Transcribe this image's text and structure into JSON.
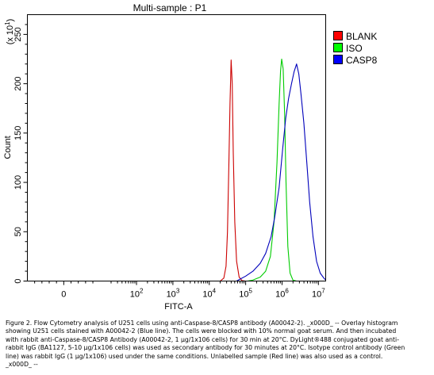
{
  "chart_data": {
    "type": "line",
    "title": "Multi-sample : P1",
    "xlabel": "FITC-A",
    "ylabel": "Count",
    "y_multiplier": "(x 10",
    "y_multiplier_exp": "1",
    "y_multiplier_close": ")",
    "x_scale": "log",
    "xlim": [
      -1,
      7.2
    ],
    "ylim": [
      0,
      27
    ],
    "x_ticks": [
      {
        "value": 0,
        "base": "0",
        "exp": ""
      },
      {
        "value": 2,
        "base": "10",
        "exp": "2"
      },
      {
        "value": 3,
        "base": "10",
        "exp": "3"
      },
      {
        "value": 4,
        "base": "10",
        "exp": "4"
      },
      {
        "value": 5,
        "base": "10",
        "exp": "5"
      },
      {
        "value": 6,
        "base": "10",
        "exp": "6"
      },
      {
        "value": 7,
        "base": "10",
        "exp": "7"
      }
    ],
    "y_ticks": [
      "0",
      "50",
      "100",
      "150",
      "200",
      "250"
    ],
    "y_tick_values": [
      0,
      5,
      10,
      15,
      20,
      25
    ],
    "legend_position": "top-right",
    "series": [
      {
        "name": "BLANK",
        "color": "#cc0000",
        "legend_fill": "#ff0000",
        "points": [
          [
            4.3,
            0
          ],
          [
            4.4,
            0.3
          ],
          [
            4.46,
            1.5
          ],
          [
            4.5,
            5
          ],
          [
            4.54,
            12
          ],
          [
            4.57,
            18
          ],
          [
            4.6,
            22.4
          ],
          [
            4.63,
            20
          ],
          [
            4.66,
            13
          ],
          [
            4.7,
            6
          ],
          [
            4.75,
            2
          ],
          [
            4.82,
            0.4
          ],
          [
            4.9,
            0.05
          ],
          [
            5.0,
            0
          ]
        ]
      },
      {
        "name": "ISO",
        "color": "#00cc00",
        "legend_fill": "#00ff00",
        "points": [
          [
            5.05,
            0
          ],
          [
            5.2,
            0.1
          ],
          [
            5.4,
            0.4
          ],
          [
            5.55,
            1.0
          ],
          [
            5.68,
            2.5
          ],
          [
            5.78,
            6
          ],
          [
            5.86,
            12
          ],
          [
            5.92,
            18
          ],
          [
            5.96,
            21.3
          ],
          [
            5.99,
            22.5
          ],
          [
            6.03,
            21.5
          ],
          [
            6.07,
            17
          ],
          [
            6.11,
            10
          ],
          [
            6.16,
            3.5
          ],
          [
            6.22,
            0.8
          ],
          [
            6.3,
            0.1
          ],
          [
            6.4,
            0
          ]
        ]
      },
      {
        "name": "CASP8",
        "color": "#0000bb",
        "legend_fill": "#0000ff",
        "points": [
          [
            4.75,
            0
          ],
          [
            4.85,
            0.2
          ],
          [
            5.0,
            0.5
          ],
          [
            5.2,
            1.0
          ],
          [
            5.4,
            1.8
          ],
          [
            5.55,
            2.8
          ],
          [
            5.7,
            4.5
          ],
          [
            5.8,
            6.5
          ],
          [
            5.92,
            9.5
          ],
          [
            6.02,
            13.5
          ],
          [
            6.1,
            16.5
          ],
          [
            6.18,
            18.5
          ],
          [
            6.26,
            20.0
          ],
          [
            6.33,
            21.2
          ],
          [
            6.4,
            22.0
          ],
          [
            6.46,
            21.0
          ],
          [
            6.52,
            19.0
          ],
          [
            6.6,
            16.0
          ],
          [
            6.68,
            12.0
          ],
          [
            6.76,
            8.0
          ],
          [
            6.85,
            4.5
          ],
          [
            6.95,
            2.0
          ],
          [
            7.05,
            0.8
          ],
          [
            7.15,
            0.3
          ],
          [
            7.2,
            0.1
          ]
        ]
      }
    ]
  },
  "caption": "Figure 2. Flow Cytometry analysis of U251 cells using anti-Caspase-8/CASP8 antibody (A00042-2). _x000D_ -- Overlay histogram showing U251 cells stained with A00042-2 (Blue line). The cells were blocked with 10% normal goat serum. And then incubated with rabbit anti-Caspase-8/CASP8 Antibody (A00042-2, 1 μg/1x106 cells) for 30 min at 20°C. DyLight®488 conjugated goat anti-rabbit IgG (BA1127, 5-10 μg/1x106 cells) was used as secondary antibody for 30 minutes at 20°C. Isotype control antibody (Green line) was rabbit IgG (1 μg/1x106) used under the same conditions. Unlabelled sample (Red line) was also used as a control. _x000D_ --"
}
